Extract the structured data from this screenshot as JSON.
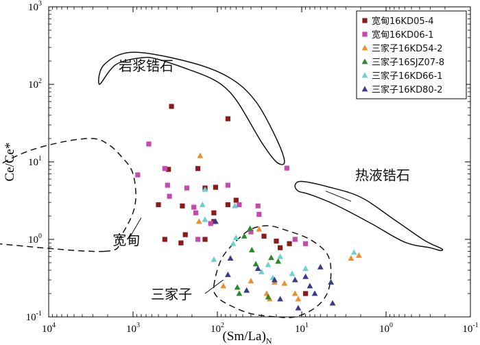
{
  "chart_data": {
    "type": "scatter",
    "xaxis": {
      "label_main": "(Sm/La)",
      "label_sub": "N",
      "scale": "log",
      "reversed": true,
      "range": [
        10000,
        0.1
      ],
      "ticks": [
        {
          "value": 10000,
          "base": "10",
          "exp": "4"
        },
        {
          "value": 1000,
          "base": "10",
          "exp": "3"
        },
        {
          "value": 100,
          "base": "10",
          "exp": "2"
        },
        {
          "value": 10,
          "base": "10",
          "exp": "1"
        },
        {
          "value": 1,
          "base": "10",
          "exp": "0"
        },
        {
          "value": 0.1,
          "base": "10",
          "exp": "-1"
        }
      ]
    },
    "yaxis": {
      "label": "Ce/Ce*",
      "scale": "log",
      "range": [
        0.1,
        1000
      ],
      "ticks": [
        {
          "value": 0.1,
          "base": "10",
          "exp": "-1"
        },
        {
          "value": 1,
          "base": "10",
          "exp": "0"
        },
        {
          "value": 10,
          "base": "10",
          "exp": "1"
        },
        {
          "value": 100,
          "base": "10",
          "exp": "2"
        },
        {
          "value": 1000,
          "base": "10",
          "exp": "3"
        }
      ]
    },
    "regions": [
      {
        "name": "岩浆锆石",
        "style": "solid",
        "label_at": [
          700,
          150
        ],
        "outline": [
          [
            2500,
            100
          ],
          [
            1600,
            180
          ],
          [
            800,
            220
          ],
          [
            500,
            210
          ],
          [
            200,
            150
          ],
          [
            120,
            120
          ],
          [
            80,
            90
          ],
          [
            55,
            55
          ],
          [
            30,
            18
          ],
          [
            20,
            10
          ],
          [
            16,
            10
          ],
          [
            20,
            20
          ],
          [
            35,
            60
          ],
          [
            70,
            120
          ],
          [
            200,
            190
          ],
          [
            1000,
            260
          ],
          [
            2200,
            180
          ],
          [
            2500,
            100
          ]
        ]
      },
      {
        "name": "热液锆石",
        "style": "solid",
        "label_at": [
          1.1,
          5.8
        ],
        "outline": [
          [
            11,
            4.2
          ],
          [
            8,
            3.8
          ],
          [
            4,
            2.8
          ],
          [
            1.5,
            1.6
          ],
          [
            0.6,
            0.92
          ],
          [
            0.3,
            0.78
          ],
          [
            0.23,
            0.72
          ],
          [
            0.22,
            0.76
          ],
          [
            0.35,
            0.97
          ],
          [
            0.8,
            1.8
          ],
          [
            2,
            3.5
          ],
          [
            5,
            4.8
          ],
          [
            10,
            5.6
          ],
          [
            12,
            5.0
          ],
          [
            11,
            4.2
          ]
        ]
      },
      {
        "name": "宽甸",
        "style": "dashed",
        "label_at": [
          1200,
          0.85
        ],
        "outline": [
          [
            2200,
            0.7
          ],
          [
            1400,
            1.1
          ],
          [
            950,
            2.7
          ],
          [
            1000,
            7
          ],
          [
            1400,
            12
          ],
          [
            2000,
            17
          ],
          [
            3000,
            20
          ],
          [
            7000,
            18
          ],
          [
            20000,
            13
          ],
          [
            60000,
            7
          ],
          [
            170000,
            3.6
          ],
          [
            300000,
            2.0
          ],
          [
            400000,
            1.0
          ],
          [
            350000,
            0.64
          ],
          [
            260000,
            0.64
          ],
          [
            200000,
            0.8
          ],
          [
            100000,
            1.0
          ],
          [
            50000,
            0.9
          ],
          [
            2200,
            0.7
          ]
        ]
      },
      {
        "name": "三家子",
        "style": "dashed",
        "label_at": [
          350,
          0.17
        ],
        "outline": [
          [
            110,
            0.25
          ],
          [
            90,
            0.55
          ],
          [
            60,
            0.95
          ],
          [
            40,
            1.35
          ],
          [
            25,
            1.5
          ],
          [
            15,
            1.3
          ],
          [
            8,
            1.0
          ],
          [
            5,
            0.65
          ],
          [
            4.5,
            0.37
          ],
          [
            5,
            0.2
          ],
          [
            7,
            0.13
          ],
          [
            12,
            0.1
          ],
          [
            20,
            0.1
          ],
          [
            40,
            0.11
          ],
          [
            70,
            0.14
          ],
          [
            100,
            0.18
          ],
          [
            110,
            0.25
          ]
        ]
      }
    ],
    "series": [
      {
        "name": "宽甸16KD05-4",
        "marker": "square",
        "color": "#8b1a1a",
        "points": [
          [
            350,
            52
          ],
          [
            75,
            36
          ],
          [
            380,
            8
          ],
          [
            170,
            8.2
          ],
          [
            140,
            4.6
          ],
          [
            105,
            4.7
          ],
          [
            60,
            3.2
          ],
          [
            500,
            2.8
          ],
          [
            260,
            2.7
          ],
          [
            110,
            1.7
          ],
          [
            75,
            2.8
          ],
          [
            110,
            2.2
          ],
          [
            270,
            0.9
          ],
          [
            420,
            1.0
          ],
          [
            140,
            1.0
          ],
          [
            240,
            1.15
          ],
          [
            28,
            1.1
          ],
          [
            20,
            0.95
          ],
          [
            18,
            0.78
          ],
          [
            14,
            0.88
          ],
          [
            9,
            0.2
          ]
        ]
      },
      {
        "name": "宽甸16KD06-1",
        "marker": "square",
        "color": "#c44aae",
        "points": [
          [
            650,
            17
          ],
          [
            420,
            8.2
          ],
          [
            880,
            6.8
          ],
          [
            390,
            5.0
          ],
          [
            230,
            4.6
          ],
          [
            370,
            3.6
          ],
          [
            190,
            2.6
          ],
          [
            55,
            2.8
          ],
          [
            75,
            5.0
          ],
          [
            33,
            2.7
          ],
          [
            32,
            2.1
          ],
          [
            15,
            8.3
          ],
          [
            40,
            1.25
          ],
          [
            180,
            2.2
          ],
          [
            170,
            1.0
          ],
          [
            120,
            1.6
          ],
          [
            12,
            1.0
          ],
          [
            9,
            0.88
          ]
        ]
      },
      {
        "name": "三家子16KD54-2",
        "marker": "triangle",
        "color": "#f08c2c",
        "points": [
          [
            160,
            12
          ],
          [
            165,
            1.7
          ],
          [
            32,
            1.35
          ],
          [
            85,
            0.25
          ],
          [
            40,
            0.29
          ],
          [
            26,
            0.2
          ],
          [
            21,
            0.28
          ],
          [
            16,
            0.27
          ],
          [
            24,
            0.17
          ],
          [
            12,
            0.2
          ],
          [
            11,
            0.17
          ],
          [
            2.6,
            0.57
          ],
          [
            2.1,
            0.62
          ]
        ]
      },
      {
        "name": "三家子16SJZ07-8",
        "marker": "triangle",
        "color": "#2a8a2a",
        "points": [
          [
            41,
            1.38
          ],
          [
            48,
            1.1
          ],
          [
            39,
            0.73
          ],
          [
            35,
            0.48
          ],
          [
            58,
            0.24
          ],
          [
            55,
            0.2
          ],
          [
            25,
            0.18
          ],
          [
            19,
            0.52
          ],
          [
            23,
            0.58
          ]
        ]
      },
      {
        "name": "三家子16KD66-1",
        "marker": "triangle",
        "color": "#6cd0d0",
        "points": [
          [
            140,
            4.4
          ],
          [
            150,
            2.8
          ],
          [
            62,
            2.7
          ],
          [
            140,
            1.8
          ],
          [
            60,
            1.05
          ],
          [
            65,
            0.88
          ],
          [
            110,
            0.55
          ],
          [
            30,
            0.38
          ],
          [
            25,
            0.47
          ],
          [
            22,
            0.32
          ],
          [
            18,
            0.6
          ],
          [
            13,
            0.36
          ],
          [
            9,
            0.42
          ],
          [
            2.4,
            0.68
          ]
        ]
      },
      {
        "name": "三家子16KD80-2",
        "marker": "triangle",
        "color": "#3a3a8f",
        "points": [
          [
            105,
            1.7
          ],
          [
            70,
            0.57
          ],
          [
            75,
            0.35
          ],
          [
            45,
            0.22
          ],
          [
            33,
            0.42
          ],
          [
            21,
            0.3
          ],
          [
            18,
            0.17
          ],
          [
            12,
            0.3
          ],
          [
            9,
            0.33
          ],
          [
            8,
            0.25
          ],
          [
            7,
            0.2
          ],
          [
            6,
            0.44
          ],
          [
            11,
            0.13
          ],
          [
            4.5,
            0.28
          ],
          [
            4.3,
            0.15
          ]
        ]
      }
    ]
  }
}
